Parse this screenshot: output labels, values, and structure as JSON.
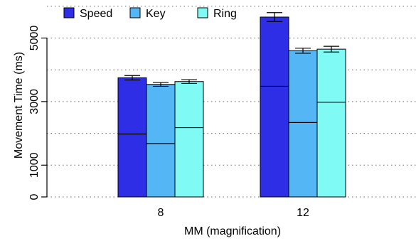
{
  "chart_data": {
    "type": "bar",
    "stacked_split": true,
    "xlabel": "MM (magnification)",
    "ylabel": "Movement Time (ms)",
    "ylim": [
      0,
      6000
    ],
    "yticks": [
      "0",
      "1000",
      "3000",
      "5000"
    ],
    "grid": "horizontal dotted",
    "legend_position": "top-left",
    "categories": [
      "8",
      "12"
    ],
    "series": [
      {
        "name": "Speed",
        "color": "#2e2ee6",
        "values": [
          3750,
          5660
        ],
        "lower_segment": [
          1980,
          3480
        ],
        "error": [
          70,
          140
        ]
      },
      {
        "name": "Key",
        "color": "#55b6f5",
        "values": [
          3540,
          4600
        ],
        "lower_segment": [
          1680,
          2340
        ],
        "error": [
          60,
          80
        ]
      },
      {
        "name": "Ring",
        "color": "#7ffaf5",
        "values": [
          3630,
          4650
        ],
        "lower_segment": [
          2180,
          2980
        ],
        "error": [
          60,
          90
        ]
      }
    ]
  }
}
